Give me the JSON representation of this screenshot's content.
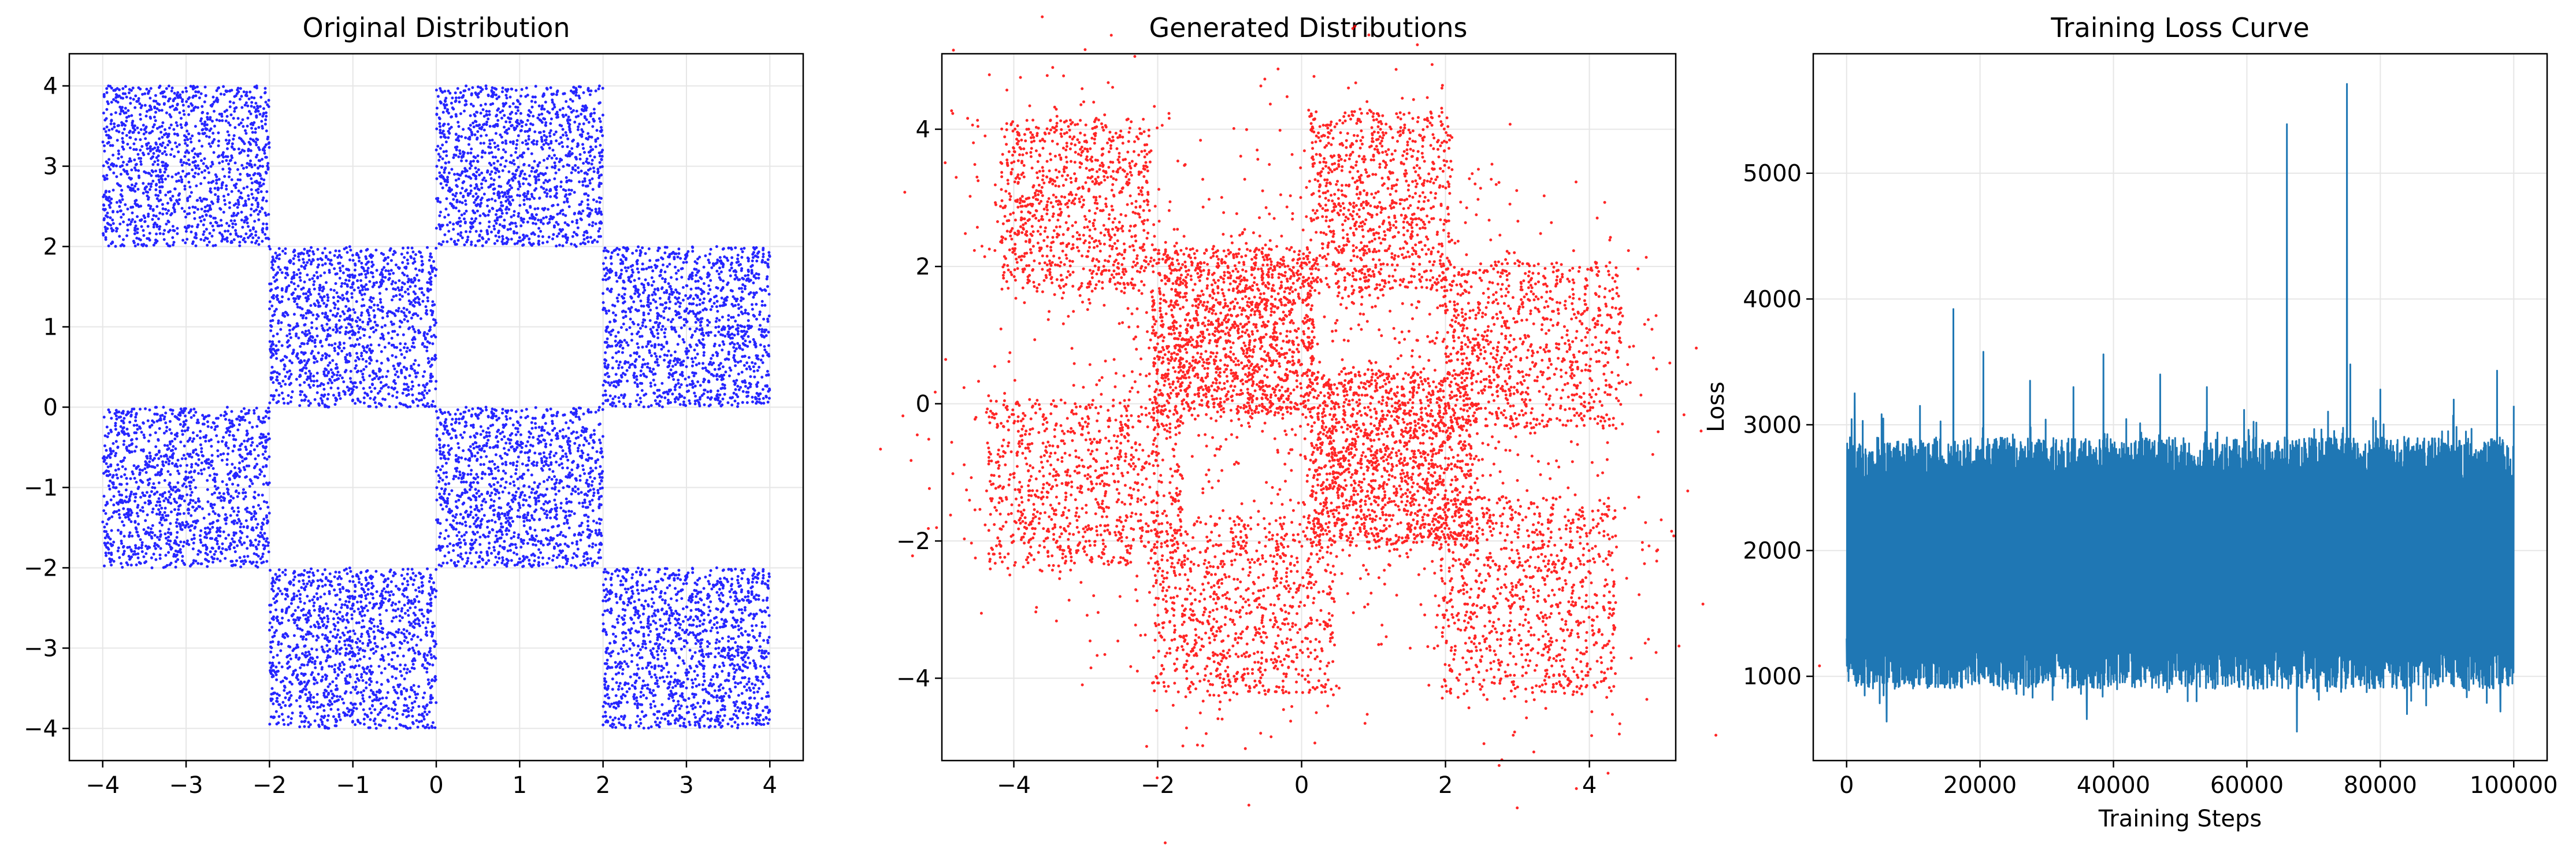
{
  "chart_data": [
    {
      "type": "scatter",
      "title": "Original Distribution",
      "xlabel": "",
      "ylabel": "",
      "xlim": [
        -4.4,
        4.4
      ],
      "ylim": [
        -4.4,
        4.4
      ],
      "xticks": [
        -4,
        -3,
        -2,
        -1,
        0,
        1,
        2,
        3,
        4
      ],
      "yticks": [
        -4,
        -3,
        -2,
        -1,
        0,
        1,
        2,
        3,
        4
      ],
      "grid": true,
      "color": "#0000ff",
      "description_of_points": "uniform samples on checkerboard squares",
      "squares": [
        {
          "x": [
            -4,
            -2
          ],
          "y": [
            2,
            4
          ]
        },
        {
          "x": [
            0,
            2
          ],
          "y": [
            2,
            4
          ]
        },
        {
          "x": [
            -2,
            0
          ],
          "y": [
            0,
            2
          ]
        },
        {
          "x": [
            2,
            4
          ],
          "y": [
            0,
            2
          ]
        },
        {
          "x": [
            -4,
            -2
          ],
          "y": [
            -2,
            0
          ]
        },
        {
          "x": [
            0,
            2
          ],
          "y": [
            -2,
            0
          ]
        },
        {
          "x": [
            -2,
            0
          ],
          "y": [
            -4,
            -2
          ]
        },
        {
          "x": [
            2,
            4
          ],
          "y": [
            -4,
            -2
          ]
        }
      ]
    },
    {
      "type": "scatter",
      "title": "Generated Distributions",
      "xlabel": "",
      "ylabel": "",
      "xlim": [
        -5.0,
        5.2
      ],
      "ylim": [
        -5.2,
        5.1
      ],
      "xticks": [
        -4,
        -2,
        0,
        2,
        4
      ],
      "yticks": [
        -4,
        -2,
        0,
        2,
        4
      ],
      "grid": true,
      "color": "#ff0000",
      "clusters": [
        {
          "x": [
            -4.3,
            -2.0
          ],
          "y": [
            1.5,
            4.3
          ]
        },
        {
          "x": [
            0.0,
            2.2
          ],
          "y": [
            1.5,
            4.4
          ]
        },
        {
          "x": [
            -2.2,
            0.3
          ],
          "y": [
            -0.3,
            2.4
          ]
        },
        {
          "x": [
            1.8,
            4.6
          ],
          "y": [
            -0.5,
            2.2
          ]
        },
        {
          "x": [
            -4.5,
            -1.5
          ],
          "y": [
            -2.5,
            0.2
          ]
        },
        {
          "x": [
            0.0,
            2.5
          ],
          "y": [
            -2.2,
            0.6
          ]
        },
        {
          "x": [
            -2.2,
            0.6
          ],
          "y": [
            -4.4,
            -1.5
          ]
        },
        {
          "x": [
            1.8,
            4.5
          ],
          "y": [
            -4.4,
            -1.2
          ]
        }
      ]
    },
    {
      "type": "line",
      "title": "Training Loss Curve",
      "xlabel": "Training Steps",
      "ylabel": "Loss",
      "xlim": [
        -5000,
        105000
      ],
      "ylim": [
        330,
        5950
      ],
      "xticks": [
        0,
        20000,
        40000,
        60000,
        80000,
        100000
      ],
      "yticks": [
        1000,
        2000,
        3000,
        4000,
        5000
      ],
      "grid": true,
      "color": "#1f77b4",
      "steps": 100000,
      "band": {
        "low": 900,
        "high": 2900
      },
      "spikes": [
        {
          "x": 500,
          "y": 2900
        },
        {
          "x": 1200,
          "y": 3250
        },
        {
          "x": 5500,
          "y": 3050
        },
        {
          "x": 11000,
          "y": 3150
        },
        {
          "x": 16000,
          "y": 3920
        },
        {
          "x": 20500,
          "y": 3580
        },
        {
          "x": 27500,
          "y": 3350
        },
        {
          "x": 34000,
          "y": 3300
        },
        {
          "x": 38500,
          "y": 3560
        },
        {
          "x": 47000,
          "y": 3400
        },
        {
          "x": 54000,
          "y": 3300
        },
        {
          "x": 66000,
          "y": 5390
        },
        {
          "x": 75000,
          "y": 5710
        },
        {
          "x": 75500,
          "y": 3480
        },
        {
          "x": 80000,
          "y": 3280
        },
        {
          "x": 91000,
          "y": 3200
        },
        {
          "x": 97500,
          "y": 3430
        },
        {
          "x": 100000,
          "y": 3150
        }
      ],
      "dips": [
        {
          "x": 6000,
          "y": 640
        },
        {
          "x": 36000,
          "y": 660
        },
        {
          "x": 67500,
          "y": 560
        },
        {
          "x": 84000,
          "y": 700
        },
        {
          "x": 98000,
          "y": 720
        }
      ]
    }
  ]
}
